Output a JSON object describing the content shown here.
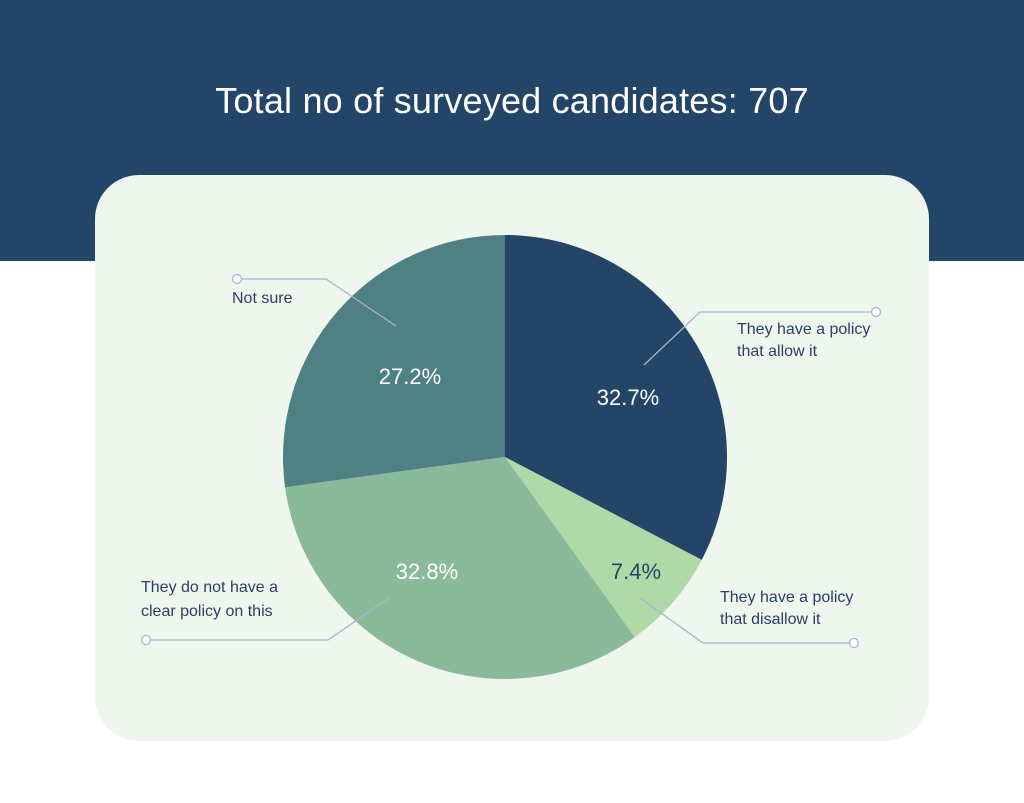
{
  "title": "Total no of surveyed candidates: 707",
  "chart_data": {
    "type": "pie",
    "title": "Total no of surveyed candidates: 707",
    "total": 707,
    "slices": [
      {
        "label": "They have a policy that allow it",
        "label_lines": [
          "They have a policy",
          "that allow it"
        ],
        "value": 32.7,
        "value_label": "32.7%",
        "color": "#224568"
      },
      {
        "label": "They have a policy that disallow it",
        "label_lines": [
          "They have a policy",
          "that disallow it"
        ],
        "value": 7.4,
        "value_label": "7.4%",
        "color": "#b0d9a8"
      },
      {
        "label": "They do not have a clear policy on this",
        "label_lines": [
          "They do not have a",
          "clear policy on this"
        ],
        "value": 32.8,
        "value_label": "32.8%",
        "color": "#8aba9a"
      },
      {
        "label": "Not sure",
        "label_lines": [
          "Not sure"
        ],
        "value": 27.2,
        "value_label": "27.2%",
        "color": "#4f8084"
      }
    ],
    "start_angle": "12 o'clock",
    "direction": "clockwise",
    "legend": "callouts"
  },
  "colors": {
    "header": "#224568",
    "card": "#eef6ee",
    "leader_line": "#aab4cc",
    "callout_text": "#2a3f63",
    "value_text_light": "#ffffff",
    "value_text_dark": "#224568"
  }
}
